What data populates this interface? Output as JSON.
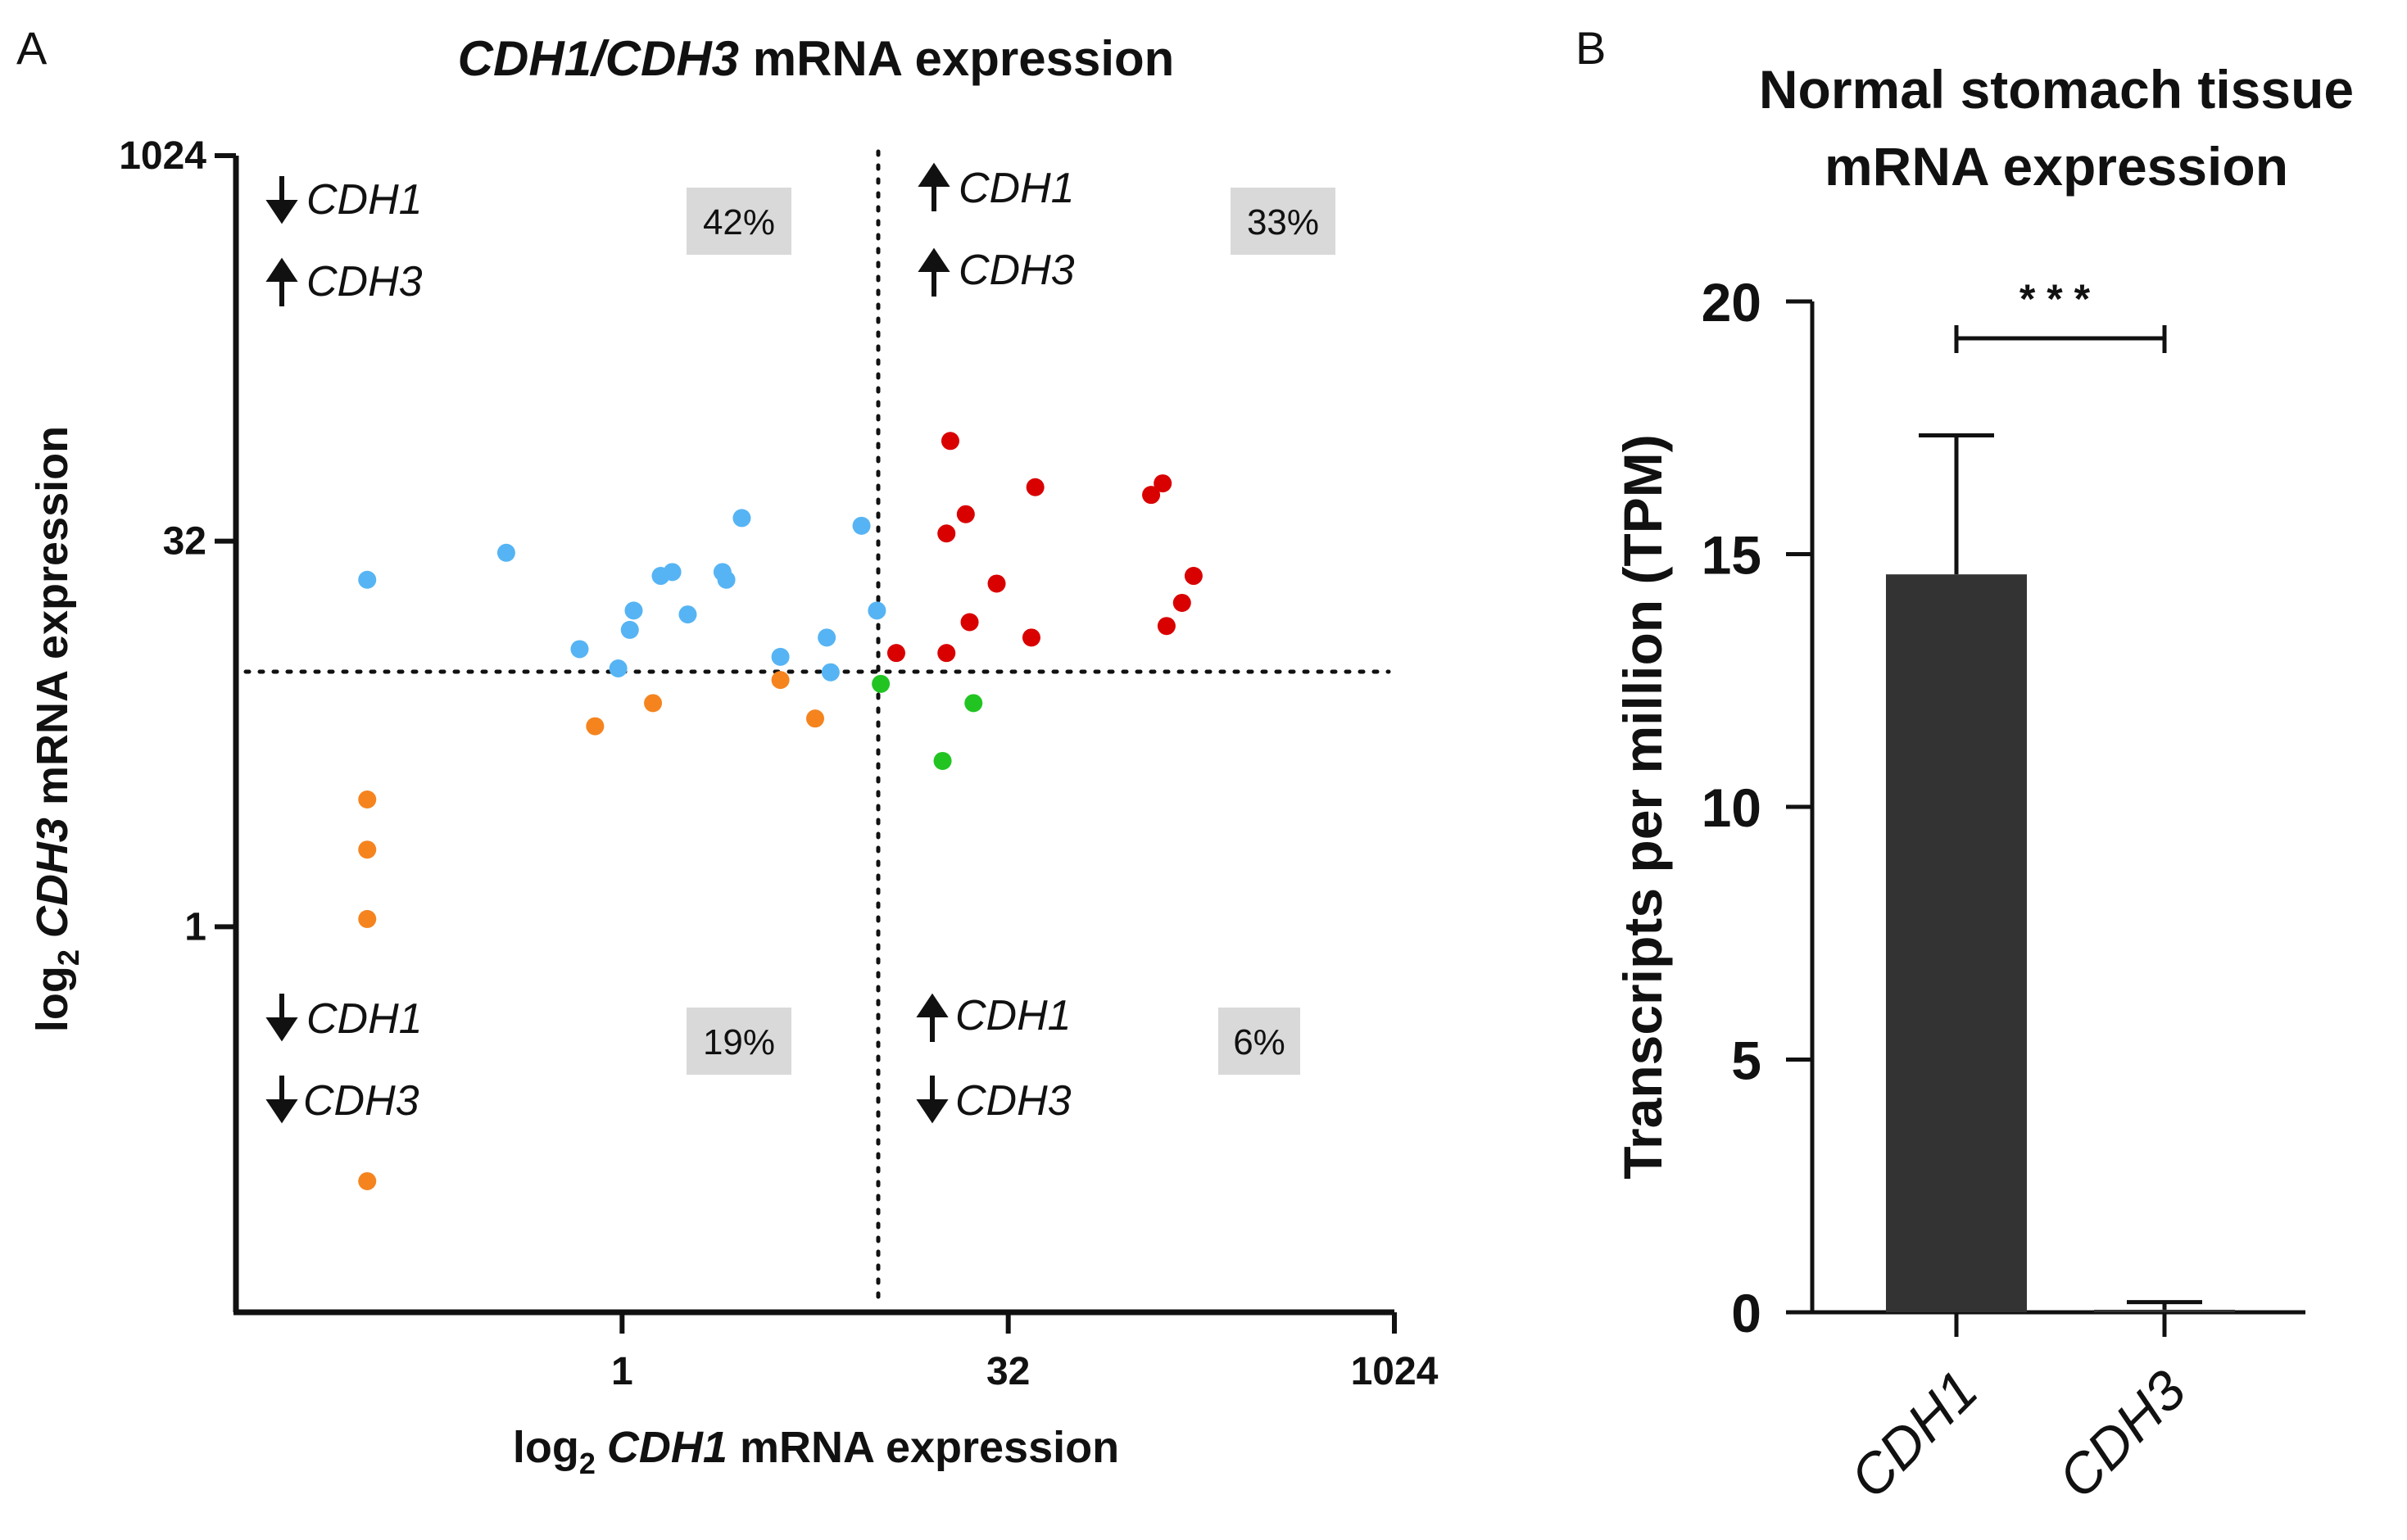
{
  "colors": {
    "axis": "#111111",
    "blue": "#56b4f4",
    "red": "#d90000",
    "orange": "#f5841f",
    "green": "#22c422",
    "bar": "#333333",
    "pct_box": "#d9d9d9"
  },
  "panelA": {
    "letter": "A",
    "title_gene1": "CDH1",
    "title_sep": "/",
    "title_gene2": "CDH3",
    "title_rest": " mRNA expression",
    "xlabel_prefix": "log",
    "xlabel_sub": "2",
    "xlabel_gene": "CDH1",
    "xlabel_rest": " mRNA expression",
    "ylabel_prefix": "log",
    "ylabel_sub": "2",
    "ylabel_gene": "CDH3",
    "ylabel_rest": " mRNA expression",
    "quadrants": {
      "top_left": {
        "gene1": "CDH1",
        "gene2": "CDH3",
        "pct": "42%"
      },
      "top_right": {
        "gene1": "CDH1",
        "gene2": "CDH3",
        "pct": "33%"
      },
      "bottom_left": {
        "gene1": "CDH1",
        "gene2": "CDH3",
        "pct": "19%"
      },
      "bottom_right": {
        "gene1": "CDH1",
        "gene2": "CDH3",
        "pct": "6%"
      }
    }
  },
  "panelB": {
    "letter": "B",
    "title_line1": "Normal stomach tissue",
    "title_line2": "mRNA expression",
    "ylabel": "Transcripts per million (TPM)",
    "significance": "* * *"
  },
  "chart_data": [
    {
      "type": "scatter",
      "title": "CDH1/CDH3 mRNA expression",
      "xlabel": "log2 CDH1 mRNA expression",
      "ylabel": "log2 CDH3 mRNA expression",
      "x_scale": "log2",
      "y_scale": "log2",
      "xlim_log2": [
        -5,
        10
      ],
      "ylim_log2": [
        -5,
        10
      ],
      "x_ticks": [
        {
          "log2": 0,
          "label": "1"
        },
        {
          "log2": 5,
          "label": "32"
        },
        {
          "log2": 10,
          "label": "1024"
        }
      ],
      "y_ticks": [
        {
          "log2": 0,
          "label": "1"
        },
        {
          "log2": 5,
          "label": "32"
        },
        {
          "log2": 10,
          "label": "1024"
        }
      ],
      "threshold_log2": {
        "x": 3.3,
        "y": 3.3
      },
      "series": [
        {
          "name": "low CDH1 / high CDH3",
          "color": "blue",
          "points": [
            [
              -3.3,
              4.5
            ],
            [
              -1.5,
              4.85
            ],
            [
              -0.55,
              3.6
            ],
            [
              -0.05,
              3.35
            ],
            [
              0.1,
              3.85
            ],
            [
              0.15,
              4.1
            ],
            [
              0.5,
              4.55
            ],
            [
              0.65,
              4.6
            ],
            [
              0.85,
              4.05
            ],
            [
              1.3,
              4.6
            ],
            [
              1.35,
              4.5
            ],
            [
              1.55,
              5.3
            ],
            [
              2.05,
              3.5
            ],
            [
              2.65,
              3.75
            ],
            [
              2.7,
              3.3
            ],
            [
              3.1,
              5.2
            ],
            [
              3.3,
              4.1
            ]
          ]
        },
        {
          "name": "high CDH1 / high CDH3",
          "color": "red",
          "points": [
            [
              3.55,
              3.55
            ],
            [
              4.2,
              5.1
            ],
            [
              4.2,
              3.55
            ],
            [
              4.25,
              6.3
            ],
            [
              4.45,
              5.35
            ],
            [
              4.5,
              3.95
            ],
            [
              4.85,
              4.45
            ],
            [
              5.3,
              3.75
            ],
            [
              5.35,
              5.7
            ],
            [
              6.85,
              5.6
            ],
            [
              7.0,
              5.75
            ],
            [
              7.05,
              3.9
            ],
            [
              7.25,
              4.2
            ],
            [
              7.4,
              4.55
            ]
          ]
        },
        {
          "name": "low CDH1 / low CDH3",
          "color": "orange",
          "points": [
            [
              -3.3,
              1.65
            ],
            [
              -3.3,
              1.0
            ],
            [
              -3.3,
              0.1
            ],
            [
              -3.3,
              -3.3
            ],
            [
              -0.35,
              2.6
            ],
            [
              0.4,
              2.9
            ],
            [
              2.05,
              3.2
            ],
            [
              2.5,
              2.7
            ]
          ]
        },
        {
          "name": "high CDH1 / low CDH3",
          "color": "green",
          "points": [
            [
              3.35,
              3.15
            ],
            [
              4.15,
              2.15
            ],
            [
              4.55,
              2.9
            ]
          ]
        }
      ],
      "quadrant_percentages": {
        "top_left": "42%",
        "top_right": "33%",
        "bottom_left": "19%",
        "bottom_right": "6%"
      }
    },
    {
      "type": "bar",
      "title": "Normal stomach tissue mRNA expression",
      "categories": [
        "CDH1",
        "CDH3"
      ],
      "values": [
        14.6,
        0.05
      ],
      "errors": [
        2.75,
        0.15
      ],
      "ylabel": "Transcripts per million (TPM)",
      "ylim": [
        0,
        20
      ],
      "y_ticks": [
        0,
        5,
        10,
        15,
        20
      ],
      "significance": "* * *"
    }
  ]
}
